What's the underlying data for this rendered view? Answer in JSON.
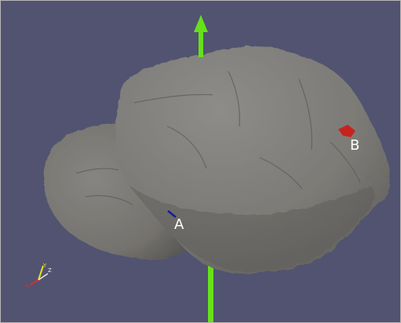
{
  "viewport": {
    "background_color": "#515370",
    "object_color": "#7e7c78",
    "object_shade_color": "#605e5b",
    "rotation_axis_color": "#66e01a"
  },
  "markers": {
    "a": {
      "label": "A",
      "color": "#1a1a9c"
    },
    "b": {
      "label": "B",
      "color": "#c8221e"
    }
  },
  "orientation_triad": {
    "x_label": "X",
    "y_label": "Y",
    "z_label": "Z",
    "x_color": "#d83030",
    "y_color": "#e8e020",
    "z_color": "#e8e8e8"
  }
}
